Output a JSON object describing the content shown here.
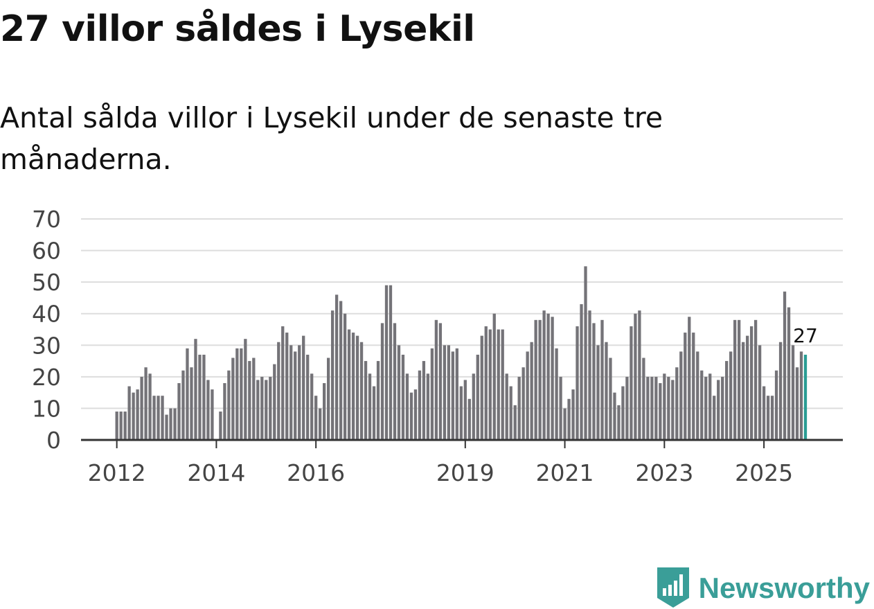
{
  "title": "27 villor såldes i Lysekil",
  "subtitle": "Antal sålda villor i Lysekil under de senaste tre månaderna.",
  "brand": {
    "name": "Newsworthy"
  },
  "colors": {
    "bar": "#747378",
    "highlight": "#2a9d94",
    "grid": "#dddddd",
    "axis": "#333333",
    "brand": "#3a9e98",
    "text": "#111111",
    "tick_text": "#444444"
  },
  "chart_data": {
    "type": "bar",
    "title": "27 villor såldes i Lysekil",
    "subtitle": "Antal sålda villor i Lysekil under de senaste tre månaderna.",
    "xlabel": "",
    "ylabel": "",
    "ylim": [
      0,
      70
    ],
    "yticks": [
      0,
      10,
      20,
      30,
      40,
      50,
      60,
      70
    ],
    "grid": true,
    "legend": "none",
    "x_start": "2012-01",
    "frequency": "monthly",
    "xtick_labels": [
      "2012",
      "2014",
      "2016",
      "2019",
      "2021",
      "2023",
      "2025"
    ],
    "values": [
      9,
      9,
      9,
      17,
      15,
      16,
      20,
      23,
      21,
      14,
      14,
      14,
      8,
      10,
      10,
      18,
      22,
      29,
      23,
      32,
      27,
      27,
      19,
      16,
      0,
      9,
      18,
      22,
      26,
      29,
      29,
      32,
      25,
      26,
      19,
      20,
      19,
      20,
      24,
      31,
      36,
      34,
      30,
      28,
      30,
      33,
      27,
      21,
      14,
      10,
      18,
      26,
      41,
      46,
      44,
      40,
      35,
      34,
      33,
      31,
      25,
      21,
      17,
      25,
      37,
      49,
      49,
      37,
      30,
      27,
      21,
      15,
      16,
      22,
      25,
      21,
      29,
      38,
      37,
      30,
      30,
      28,
      29,
      17,
      19,
      13,
      21,
      27,
      33,
      36,
      35,
      40,
      35,
      35,
      21,
      17,
      11,
      20,
      23,
      28,
      31,
      38,
      38,
      41,
      40,
      39,
      29,
      20,
      10,
      13,
      16,
      36,
      43,
      55,
      41,
      37,
      30,
      38,
      31,
      26,
      15,
      11,
      17,
      20,
      36,
      40,
      41,
      26,
      20,
      20,
      20,
      18,
      21,
      20,
      19,
      23,
      28,
      34,
      39,
      34,
      28,
      22,
      20,
      21,
      14,
      19,
      20,
      25,
      28,
      38,
      38,
      31,
      33,
      36,
      38,
      30,
      17,
      14,
      14,
      22,
      31,
      47,
      42,
      30,
      23,
      28,
      27
    ],
    "highlight": {
      "label": "27",
      "value": 27
    }
  }
}
